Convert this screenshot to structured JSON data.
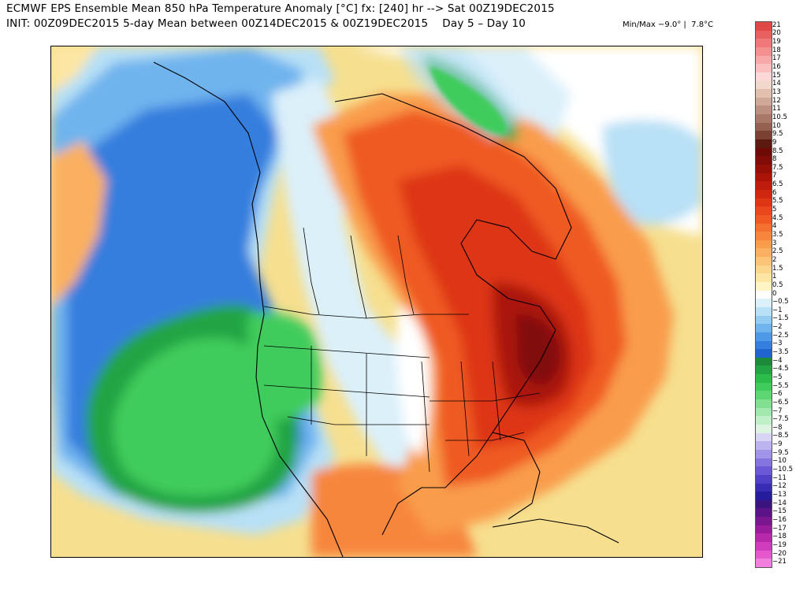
{
  "header": {
    "line1": "ECMWF EPS Ensemble Mean 850 hPa Temperature Anomaly [°C] fx: [240] hr --> Sat 00Z19DEC2015",
    "line2": "INIT: 00Z09DEC2015 5-day Mean between 00Z14DEC2015 & 00Z19DEC2015    Day 5 – Day 10",
    "minmax": "Min/Max −9.0° |  7.8°C"
  },
  "colorbar": {
    "units": "°C",
    "entries": [
      {
        "label": "21",
        "color": "#e04848"
      },
      {
        "label": "20",
        "color": "#e86060"
      },
      {
        "label": "19",
        "color": "#f07878"
      },
      {
        "label": "18",
        "color": "#f49090"
      },
      {
        "label": "17",
        "color": "#f7a8a8"
      },
      {
        "label": "16",
        "color": "#fac0c0"
      },
      {
        "label": "15",
        "color": "#fcd8d8"
      },
      {
        "label": "14",
        "color": "#f2d8cc"
      },
      {
        "label": "13",
        "color": "#e2c0b0"
      },
      {
        "label": "12",
        "color": "#cfa898"
      },
      {
        "label": "11",
        "color": "#bc9080"
      },
      {
        "label": "10.5",
        "color": "#a87868"
      },
      {
        "label": "10",
        "color": "#946050"
      },
      {
        "label": "9.5",
        "color": "#7a4032"
      },
      {
        "label": "9",
        "color": "#5a1a10"
      },
      {
        "label": "8.5",
        "color": "#6e0a06"
      },
      {
        "label": "8",
        "color": "#820c08"
      },
      {
        "label": "7.5",
        "color": "#961008"
      },
      {
        "label": "7",
        "color": "#aa1408"
      },
      {
        "label": "6.5",
        "color": "#be1c0c"
      },
      {
        "label": "6",
        "color": "#cf2810"
      },
      {
        "label": "5.5",
        "color": "#dd3614"
      },
      {
        "label": "5",
        "color": "#e8481c"
      },
      {
        "label": "4.5",
        "color": "#ef5a24"
      },
      {
        "label": "4",
        "color": "#f4702e"
      },
      {
        "label": "3.5",
        "color": "#f7863c"
      },
      {
        "label": "3",
        "color": "#f99c4c"
      },
      {
        "label": "2.5",
        "color": "#fab060"
      },
      {
        "label": "2",
        "color": "#fbc476"
      },
      {
        "label": "1.5",
        "color": "#fcd68c"
      },
      {
        "label": "1",
        "color": "#fde6a4"
      },
      {
        "label": "0.5",
        "color": "#fef4c4"
      },
      {
        "label": "0",
        "color": "#ffffff"
      },
      {
        "label": "−0.5",
        "color": "#dcf0fa"
      },
      {
        "label": "−1",
        "color": "#b8e0f6"
      },
      {
        "label": "−1.5",
        "color": "#94ccf2"
      },
      {
        "label": "−2",
        "color": "#70b4ee"
      },
      {
        "label": "−2.5",
        "color": "#4e98e8"
      },
      {
        "label": "−3",
        "color": "#347ede"
      },
      {
        "label": "−3.5",
        "color": "#2064d0"
      },
      {
        "label": "−4",
        "color": "#1c8a3a"
      },
      {
        "label": "−4.5",
        "color": "#22a444"
      },
      {
        "label": "−5",
        "color": "#2cbc4c"
      },
      {
        "label": "−5.5",
        "color": "#40cc5c"
      },
      {
        "label": "−6",
        "color": "#5ed674"
      },
      {
        "label": "−6.5",
        "color": "#80e090"
      },
      {
        "label": "−7",
        "color": "#a2e8ae"
      },
      {
        "label": "−7.5",
        "color": "#c0f0c8"
      },
      {
        "label": "−8",
        "color": "#dcf4e0"
      },
      {
        "label": "−8.5",
        "color": "#d8d4f4"
      },
      {
        "label": "−9",
        "color": "#bcb4ee"
      },
      {
        "label": "−9.5",
        "color": "#a094e8"
      },
      {
        "label": "−10",
        "color": "#8474e0"
      },
      {
        "label": "−10.5",
        "color": "#6a58d6"
      },
      {
        "label": "−11",
        "color": "#5040c8"
      },
      {
        "label": "−12",
        "color": "#382cb4"
      },
      {
        "label": "−13",
        "color": "#241c9c"
      },
      {
        "label": "−14",
        "color": "#3c1480"
      },
      {
        "label": "−15",
        "color": "#5a1488"
      },
      {
        "label": "−16",
        "color": "#7a1690"
      },
      {
        "label": "−17",
        "color": "#9a1c9c"
      },
      {
        "label": "−18",
        "color": "#b828aa"
      },
      {
        "label": "−19",
        "color": "#d03cbc"
      },
      {
        "label": "−20",
        "color": "#e458cc"
      },
      {
        "label": "−21",
        "color": "#f27ede"
      }
    ]
  },
  "map": {
    "field": "850 hPa temperature anomaly",
    "regions": [
      {
        "name": "warm-background",
        "color": "#f6df8f"
      },
      {
        "name": "pacific-cold-pool",
        "color": "#1c8a3a"
      },
      {
        "name": "eastern-warm-core",
        "color": "#820c08"
      },
      {
        "name": "greenland-cold-spot",
        "color": "#22a444"
      }
    ]
  }
}
